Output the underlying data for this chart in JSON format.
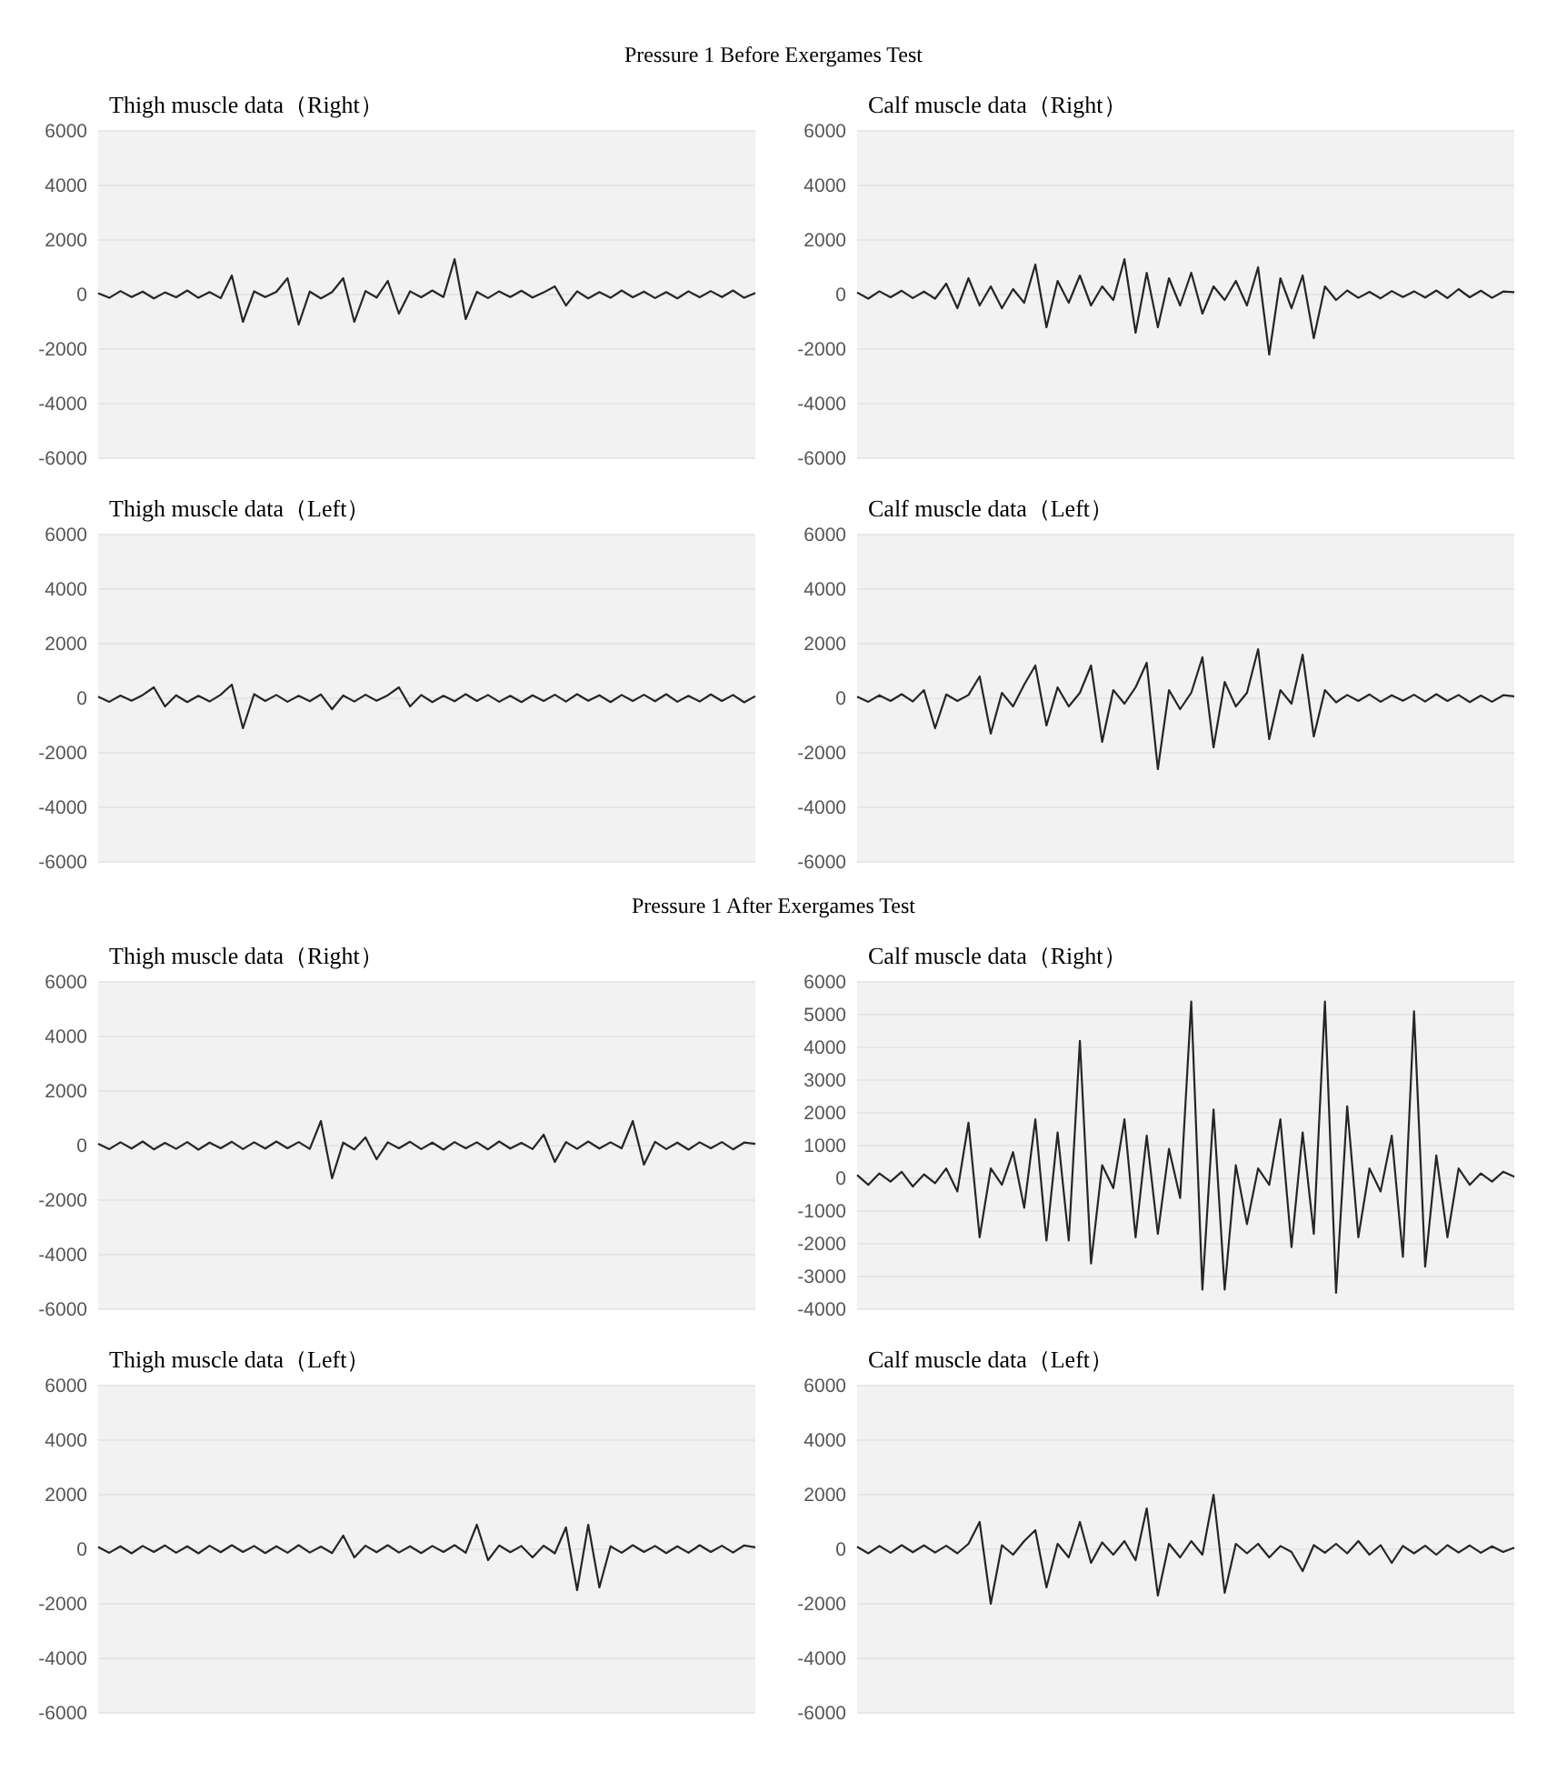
{
  "chart_data": [
    {
      "type": "line",
      "title": "Thigh muscle data（Right）",
      "annotations": [
        "Pressure 1 Before Exergames Test"
      ],
      "tick_labels": "y",
      "grid": "y",
      "color": "#262626",
      "ylim": [
        -6000,
        6000
      ],
      "yticks": [
        -6000,
        -4000,
        -2000,
        0,
        2000,
        4000,
        6000
      ],
      "categories": [
        null,
        null,
        null,
        null,
        null,
        null,
        null,
        null,
        null,
        null,
        null,
        null,
        null,
        null,
        null,
        null,
        null,
        null,
        null,
        null,
        null,
        null,
        null,
        null,
        null,
        null,
        null,
        null,
        null,
        null,
        null,
        null,
        null,
        null,
        null,
        null,
        null,
        null,
        null,
        null,
        null,
        null,
        null,
        null,
        null,
        null,
        null,
        null,
        null,
        null,
        null,
        null,
        null,
        null,
        null,
        null,
        null,
        null,
        null,
        null
      ],
      "values": [
        50,
        -120,
        130,
        -90,
        110,
        -140,
        80,
        -100,
        150,
        -120,
        90,
        -130,
        700,
        -1000,
        120,
        -90,
        100,
        600,
        -1100,
        110,
        -140,
        90,
        600,
        -1000,
        130,
        -110,
        500,
        -700,
        120,
        -100,
        150,
        -90,
        1300,
        -900,
        100,
        -130,
        120,
        -90,
        140,
        -110,
        80,
        300,
        -400,
        120,
        -140,
        90,
        -120,
        150,
        -100,
        110,
        -130,
        90,
        -140,
        120,
        -100,
        130,
        -90,
        150,
        -120,
        60
      ]
    },
    {
      "type": "line",
      "title": "Calf muscle data（Right）",
      "tick_labels": "y",
      "grid": "y",
      "color": "#262626",
      "ylim": [
        -6000,
        6000
      ],
      "yticks": [
        -6000,
        -4000,
        -2000,
        0,
        2000,
        4000,
        6000
      ],
      "categories": [
        null,
        null,
        null,
        null,
        null,
        null,
        null,
        null,
        null,
        null,
        null,
        null,
        null,
        null,
        null,
        null,
        null,
        null,
        null,
        null,
        null,
        null,
        null,
        null,
        null,
        null,
        null,
        null,
        null,
        null,
        null,
        null,
        null,
        null,
        null,
        null,
        null,
        null,
        null,
        null,
        null,
        null,
        null,
        null,
        null,
        null,
        null,
        null,
        null,
        null,
        null,
        null,
        null,
        null,
        null,
        null,
        null,
        null,
        null,
        null
      ],
      "values": [
        80,
        -150,
        120,
        -100,
        140,
        -130,
        110,
        -150,
        400,
        -500,
        600,
        -400,
        300,
        -500,
        200,
        -300,
        1100,
        -1200,
        500,
        -300,
        700,
        -400,
        300,
        -200,
        1300,
        -1400,
        800,
        -1200,
        600,
        -400,
        800,
        -700,
        300,
        -200,
        500,
        -400,
        1000,
        -2200,
        600,
        -500,
        700,
        -1600,
        300,
        -200,
        150,
        -120,
        100,
        -140,
        130,
        -90,
        120,
        -110,
        150,
        -130,
        200,
        -100,
        140,
        -120,
        110,
        90
      ]
    },
    {
      "type": "line",
      "title": "Thigh muscle data（Left）",
      "tick_labels": "y",
      "grid": "y",
      "color": "#262626",
      "ylim": [
        -6000,
        6000
      ],
      "yticks": [
        -6000,
        -4000,
        -2000,
        0,
        2000,
        4000,
        6000
      ],
      "categories": [
        null,
        null,
        null,
        null,
        null,
        null,
        null,
        null,
        null,
        null,
        null,
        null,
        null,
        null,
        null,
        null,
        null,
        null,
        null,
        null,
        null,
        null,
        null,
        null,
        null,
        null,
        null,
        null,
        null,
        null,
        null,
        null,
        null,
        null,
        null,
        null,
        null,
        null,
        null,
        null,
        null,
        null,
        null,
        null,
        null,
        null,
        null,
        null,
        null,
        null,
        null,
        null,
        null,
        null,
        null,
        null,
        null,
        null,
        null,
        null
      ],
      "values": [
        60,
        -130,
        100,
        -90,
        120,
        400,
        -300,
        110,
        -140,
        90,
        -120,
        130,
        500,
        -1100,
        150,
        -100,
        120,
        -130,
        90,
        -110,
        140,
        -400,
        100,
        -120,
        130,
        -90,
        110,
        400,
        -300,
        120,
        -140,
        90,
        -110,
        150,
        -100,
        120,
        -130,
        90,
        -140,
        110,
        -100,
        130,
        -120,
        150,
        -90,
        110,
        -140,
        120,
        -100,
        130,
        -110,
        150,
        -130,
        90,
        -120,
        140,
        -100,
        120,
        -150,
        80
      ]
    },
    {
      "type": "line",
      "title": "Calf muscle data（Left）",
      "tick_labels": "y",
      "grid": "y",
      "color": "#262626",
      "ylim": [
        -6000,
        6000
      ],
      "yticks": [
        -6000,
        -4000,
        -2000,
        0,
        2000,
        4000,
        6000
      ],
      "categories": [
        null,
        null,
        null,
        null,
        null,
        null,
        null,
        null,
        null,
        null,
        null,
        null,
        null,
        null,
        null,
        null,
        null,
        null,
        null,
        null,
        null,
        null,
        null,
        null,
        null,
        null,
        null,
        null,
        null,
        null,
        null,
        null,
        null,
        null,
        null,
        null,
        null,
        null,
        null,
        null,
        null,
        null,
        null,
        null,
        null,
        null,
        null,
        null,
        null,
        null,
        null,
        null,
        null,
        null,
        null,
        null,
        null,
        null,
        null,
        null
      ],
      "values": [
        60,
        -130,
        110,
        -100,
        150,
        -120,
        300,
        -1100,
        140,
        -100,
        120,
        800,
        -1300,
        200,
        -300,
        500,
        1200,
        -1000,
        400,
        -300,
        200,
        1200,
        -1600,
        300,
        -200,
        400,
        1300,
        -2600,
        300,
        -400,
        200,
        1500,
        -1800,
        600,
        -300,
        200,
        1800,
        -1500,
        300,
        -200,
        1600,
        -1400,
        300,
        -150,
        120,
        -100,
        140,
        -130,
        110,
        -90,
        130,
        -120,
        150,
        -100,
        120,
        -140,
        100,
        -130,
        110,
        70
      ]
    },
    {
      "type": "line",
      "title": "Thigh muscle data（Right）",
      "annotations": [
        "Pressure 1 After Exergames Test"
      ],
      "tick_labels": "y",
      "grid": "y",
      "color": "#262626",
      "ylim": [
        -6000,
        6000
      ],
      "yticks": [
        -6000,
        -4000,
        -2000,
        0,
        2000,
        4000,
        6000
      ],
      "categories": [
        null,
        null,
        null,
        null,
        null,
        null,
        null,
        null,
        null,
        null,
        null,
        null,
        null,
        null,
        null,
        null,
        null,
        null,
        null,
        null,
        null,
        null,
        null,
        null,
        null,
        null,
        null,
        null,
        null,
        null,
        null,
        null,
        null,
        null,
        null,
        null,
        null,
        null,
        null,
        null,
        null,
        null,
        null,
        null,
        null,
        null,
        null,
        null,
        null,
        null,
        null,
        null,
        null,
        null,
        null,
        null,
        null,
        null,
        null,
        null
      ],
      "values": [
        70,
        -130,
        120,
        -110,
        150,
        -140,
        100,
        -120,
        130,
        -150,
        110,
        -100,
        140,
        -130,
        120,
        -110,
        150,
        -100,
        130,
        -120,
        900,
        -1200,
        110,
        -140,
        300,
        -500,
        120,
        -100,
        140,
        -130,
        110,
        -150,
        130,
        -100,
        120,
        -140,
        150,
        -110,
        100,
        -130,
        400,
        -600,
        130,
        -120,
        150,
        -110,
        120,
        -100,
        900,
        -700,
        140,
        -130,
        110,
        -150,
        120,
        -100,
        130,
        -140,
        110,
        60
      ]
    },
    {
      "type": "line",
      "title": "Calf muscle data（Right）",
      "tick_labels": "y",
      "grid": "y",
      "color": "#262626",
      "ylim": [
        -4000,
        6000
      ],
      "yticks": [
        -4000,
        -3000,
        -2000,
        -1000,
        0,
        1000,
        2000,
        3000,
        4000,
        5000,
        6000
      ],
      "categories": [
        null,
        null,
        null,
        null,
        null,
        null,
        null,
        null,
        null,
        null,
        null,
        null,
        null,
        null,
        null,
        null,
        null,
        null,
        null,
        null,
        null,
        null,
        null,
        null,
        null,
        null,
        null,
        null,
        null,
        null,
        null,
        null,
        null,
        null,
        null,
        null,
        null,
        null,
        null,
        null,
        null,
        null,
        null,
        null,
        null,
        null,
        null,
        null,
        null,
        null,
        null,
        null,
        null,
        null,
        null,
        null,
        null,
        null,
        null,
        null
      ],
      "values": [
        100,
        -200,
        150,
        -100,
        200,
        -250,
        120,
        -150,
        300,
        -400,
        1700,
        -1800,
        300,
        -200,
        800,
        -900,
        1800,
        -1900,
        1400,
        -1900,
        4200,
        -2600,
        400,
        -300,
        1800,
        -1800,
        1300,
        -1700,
        900,
        -600,
        5400,
        -3400,
        2100,
        -3400,
        400,
        -1400,
        300,
        -200,
        1800,
        -2100,
        1400,
        -1700,
        5400,
        -3500,
        2200,
        -1800,
        300,
        -400,
        1300,
        -2400,
        5100,
        -2700,
        700,
        -1800,
        300,
        -200,
        150,
        -100,
        200,
        50
      ]
    },
    {
      "type": "line",
      "title": "Thigh muscle data（Left）",
      "tick_labels": "y",
      "grid": "y",
      "color": "#262626",
      "ylim": [
        -6000,
        6000
      ],
      "yticks": [
        -6000,
        -4000,
        -2000,
        0,
        2000,
        4000,
        6000
      ],
      "categories": [
        null,
        null,
        null,
        null,
        null,
        null,
        null,
        null,
        null,
        null,
        null,
        null,
        null,
        null,
        null,
        null,
        null,
        null,
        null,
        null,
        null,
        null,
        null,
        null,
        null,
        null,
        null,
        null,
        null,
        null,
        null,
        null,
        null,
        null,
        null,
        null,
        null,
        null,
        null,
        null,
        null,
        null,
        null,
        null,
        null,
        null,
        null,
        null,
        null,
        null,
        null,
        null,
        null,
        null,
        null,
        null,
        null,
        null,
        null,
        null
      ],
      "values": [
        80,
        -130,
        110,
        -150,
        120,
        -100,
        140,
        -130,
        110,
        -150,
        130,
        -110,
        150,
        -100,
        120,
        -140,
        110,
        -130,
        150,
        -120,
        100,
        -140,
        500,
        -300,
        130,
        -110,
        150,
        -120,
        110,
        -140,
        120,
        -100,
        150,
        -130,
        900,
        -400,
        140,
        -110,
        120,
        -300,
        130,
        -150,
        800,
        -1500,
        900,
        -1400,
        110,
        -130,
        150,
        -100,
        120,
        -140,
        110,
        -130,
        150,
        -100,
        130,
        -120,
        140,
        70
      ]
    },
    {
      "type": "line",
      "title": "Calf muscle data（Left）",
      "tick_labels": "y",
      "grid": "y",
      "color": "#262626",
      "ylim": [
        -6000,
        6000
      ],
      "yticks": [
        -6000,
        -4000,
        -2000,
        0,
        2000,
        4000,
        6000
      ],
      "categories": [
        null,
        null,
        null,
        null,
        null,
        null,
        null,
        null,
        null,
        null,
        null,
        null,
        null,
        null,
        null,
        null,
        null,
        null,
        null,
        null,
        null,
        null,
        null,
        null,
        null,
        null,
        null,
        null,
        null,
        null,
        null,
        null,
        null,
        null,
        null,
        null,
        null,
        null,
        null,
        null,
        null,
        null,
        null,
        null,
        null,
        null,
        null,
        null,
        null,
        null,
        null,
        null,
        null,
        null,
        null,
        null,
        null,
        null,
        null,
        null
      ],
      "values": [
        90,
        -150,
        120,
        -130,
        150,
        -110,
        140,
        -120,
        130,
        -150,
        200,
        1000,
        -2000,
        150,
        -200,
        300,
        700,
        -1400,
        200,
        -300,
        1000,
        -500,
        250,
        -200,
        300,
        -400,
        1500,
        -1700,
        200,
        -300,
        300,
        -200,
        2000,
        -1600,
        200,
        -150,
        200,
        -300,
        120,
        -100,
        -800,
        150,
        -130,
        200,
        -150,
        300,
        -200,
        150,
        -500,
        120,
        -150,
        130,
        -200,
        150,
        -120,
        140,
        -130,
        110,
        -100,
        60
      ]
    }
  ]
}
